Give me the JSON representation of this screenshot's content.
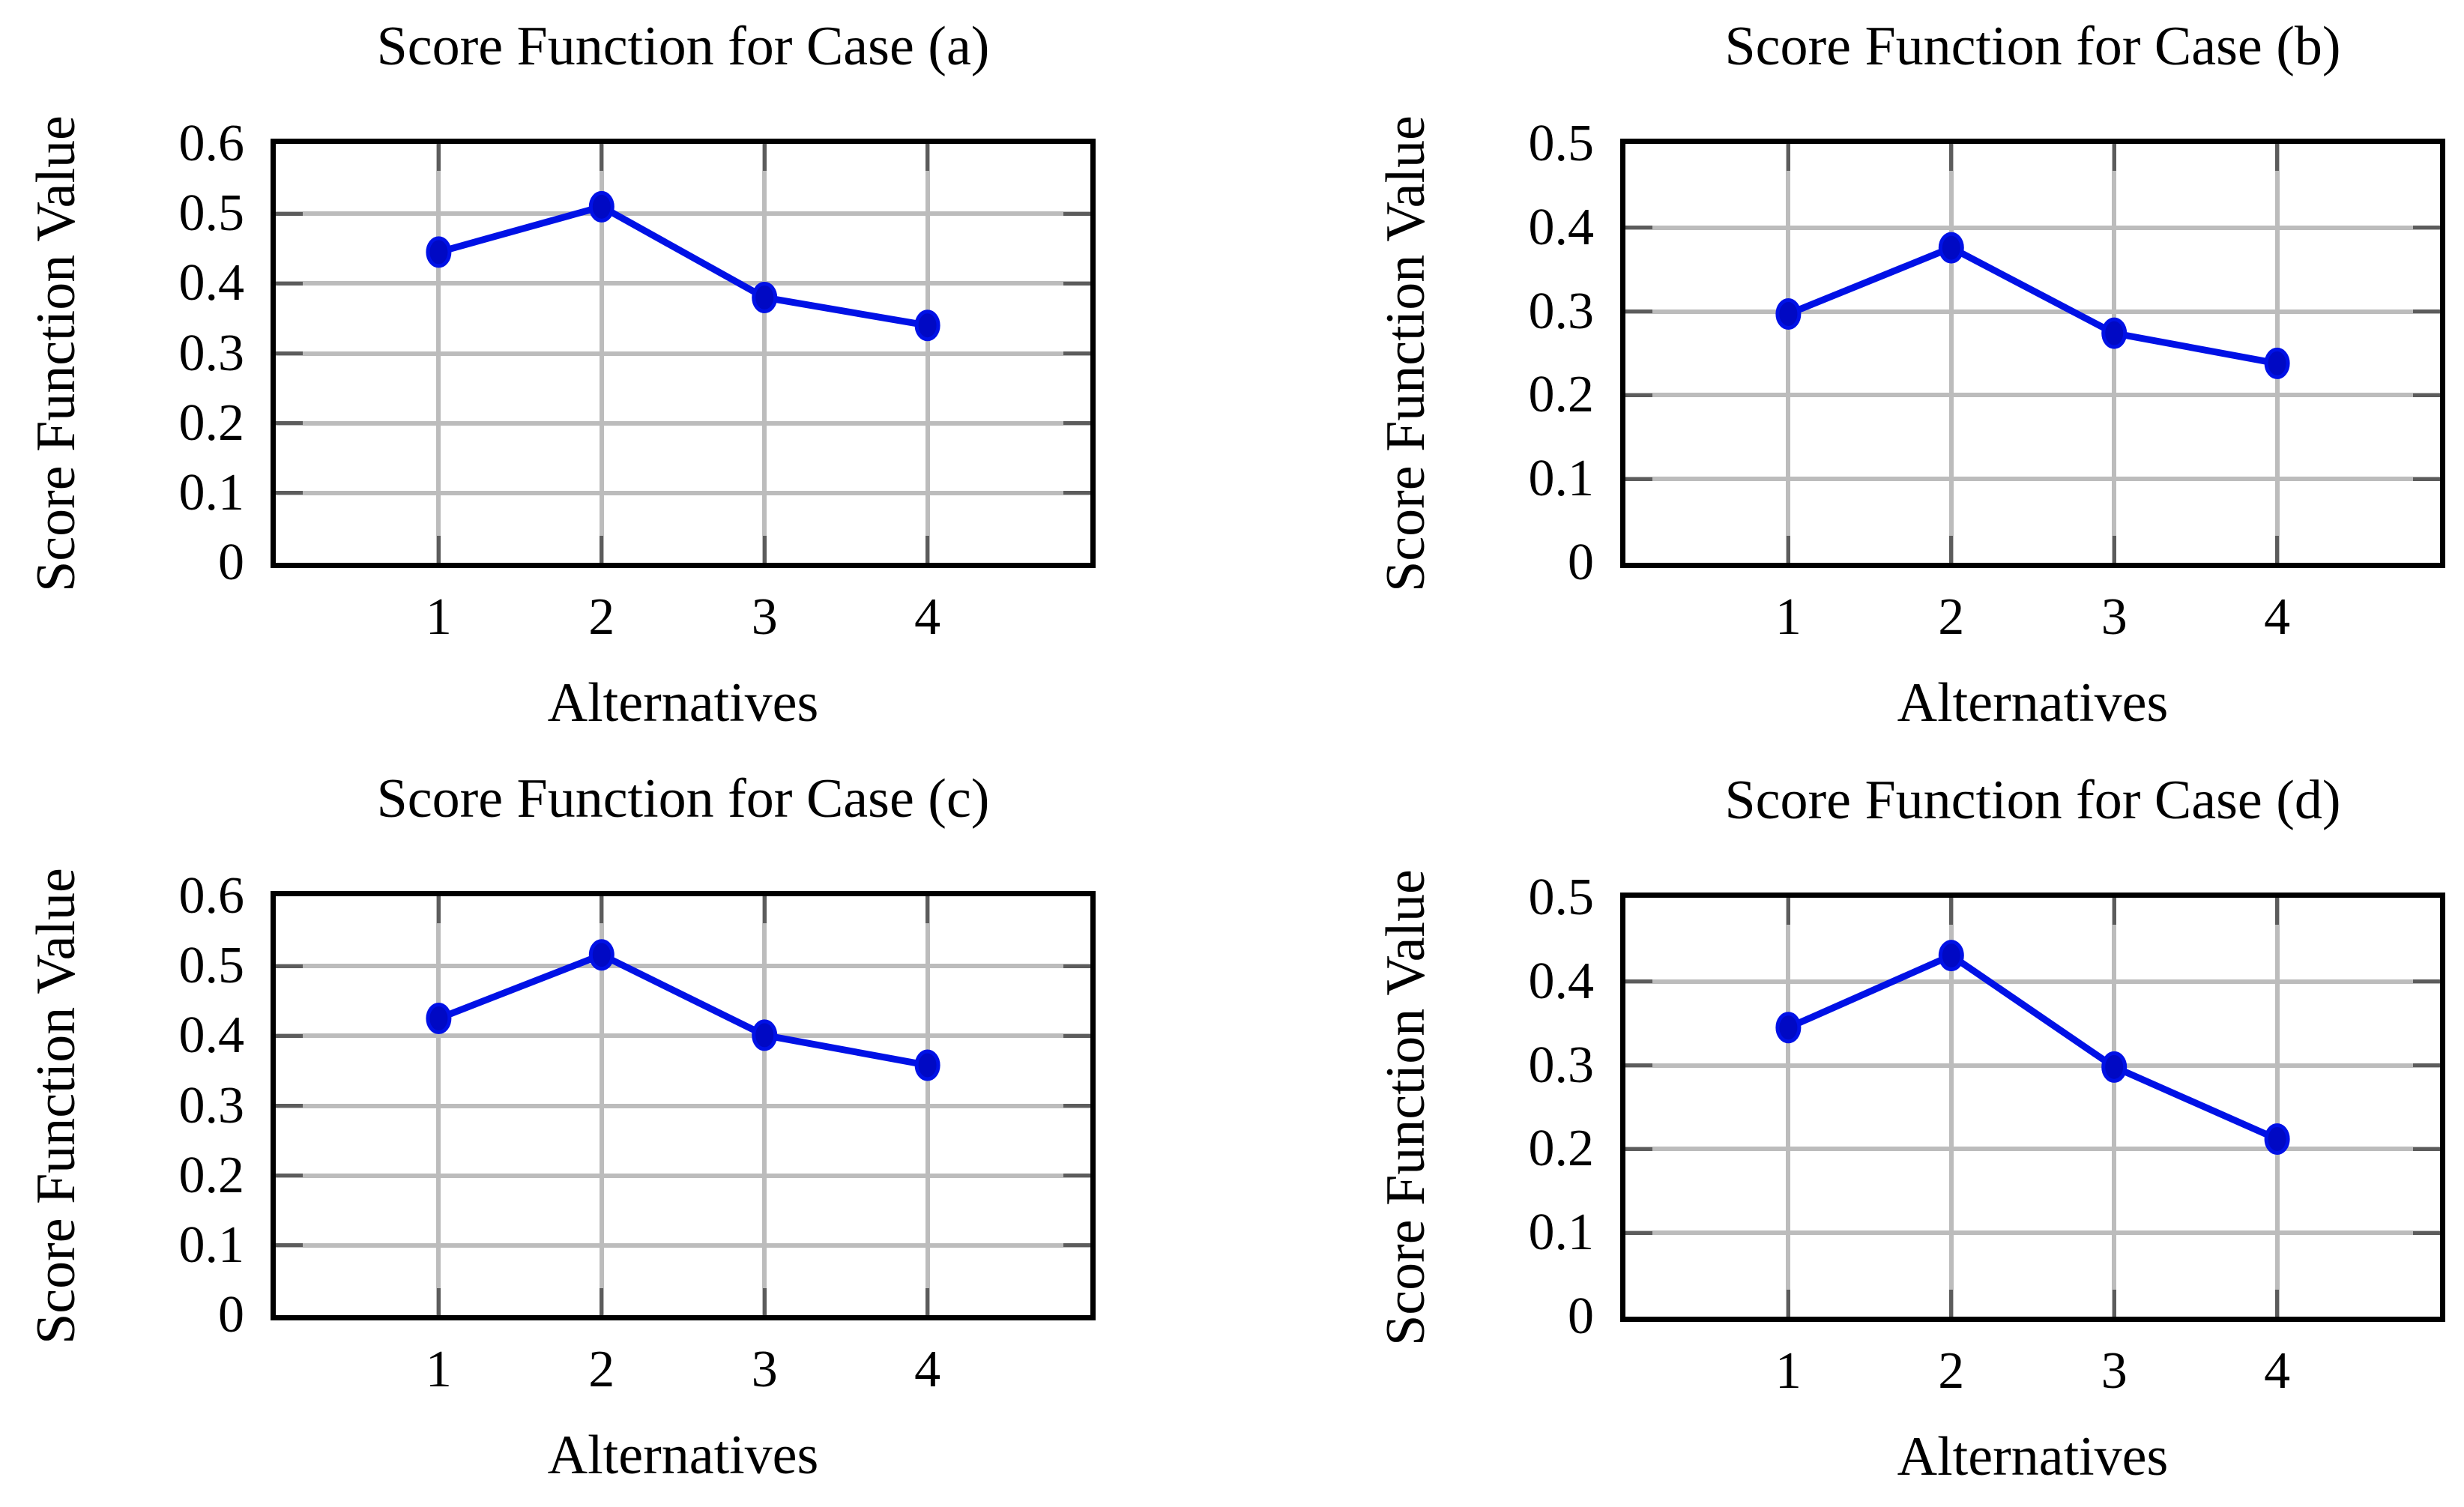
{
  "colors": {
    "line": "#0011e6",
    "marker_fill": "#0009c4",
    "marker_edge": "#0011e6",
    "grid": "#bcbcbc",
    "tick_stub": "#5c5c5c",
    "axis_border": "#000000",
    "background": "#ffffff",
    "text": "#000000"
  },
  "chart_data": [
    {
      "type": "line",
      "title": "Score Function for Case (a)",
      "xlabel": "Alternatives",
      "ylabel": "Score Function Value",
      "x": [
        1,
        2,
        3,
        4
      ],
      "values": [
        0.445,
        0.51,
        0.38,
        0.34
      ],
      "xlim": [
        0,
        5
      ],
      "ylim": [
        0,
        0.6
      ],
      "xtick_labels": [
        "1",
        "2",
        "3",
        "4"
      ],
      "ytick_labels": [
        "0",
        "0.1",
        "0.2",
        "0.3",
        "0.4",
        "0.5",
        "0.6"
      ],
      "grid": true,
      "legend_position": "none"
    },
    {
      "type": "line",
      "title": "Score Function for Case (b)",
      "xlabel": "Alternatives",
      "ylabel": "Score Function Value",
      "x": [
        1,
        2,
        3,
        4
      ],
      "values": [
        0.297,
        0.376,
        0.274,
        0.238
      ],
      "xlim": [
        0,
        5
      ],
      "ylim": [
        0,
        0.5
      ],
      "xtick_labels": [
        "1",
        "2",
        "3",
        "4"
      ],
      "ytick_labels": [
        "0",
        "0.1",
        "0.2",
        "0.3",
        "0.4",
        "0.5"
      ],
      "grid": true,
      "legend_position": "none"
    },
    {
      "type": "line",
      "title": "Score Function for Case (c)",
      "xlabel": "Alternatives",
      "ylabel": "Score Function Value",
      "x": [
        1,
        2,
        3,
        4
      ],
      "values": [
        0.425,
        0.516,
        0.401,
        0.358
      ],
      "xlim": [
        0,
        5
      ],
      "ylim": [
        0,
        0.6
      ],
      "xtick_labels": [
        "1",
        "2",
        "3",
        "4"
      ],
      "ytick_labels": [
        "0",
        "0.1",
        "0.2",
        "0.3",
        "0.4",
        "0.5",
        "0.6"
      ],
      "grid": true,
      "legend_position": "none"
    },
    {
      "type": "line",
      "title": "Score Function for Case (d)",
      "xlabel": "Alternatives",
      "ylabel": "Score Function Value",
      "x": [
        1,
        2,
        3,
        4
      ],
      "values": [
        0.345,
        0.431,
        0.298,
        0.212
      ],
      "xlim": [
        0,
        5
      ],
      "ylim": [
        0,
        0.5
      ],
      "xtick_labels": [
        "1",
        "2",
        "3",
        "4"
      ],
      "ytick_labels": [
        "0",
        "0.1",
        "0.2",
        "0.3",
        "0.4",
        "0.5"
      ],
      "grid": true,
      "legend_position": "none"
    }
  ]
}
